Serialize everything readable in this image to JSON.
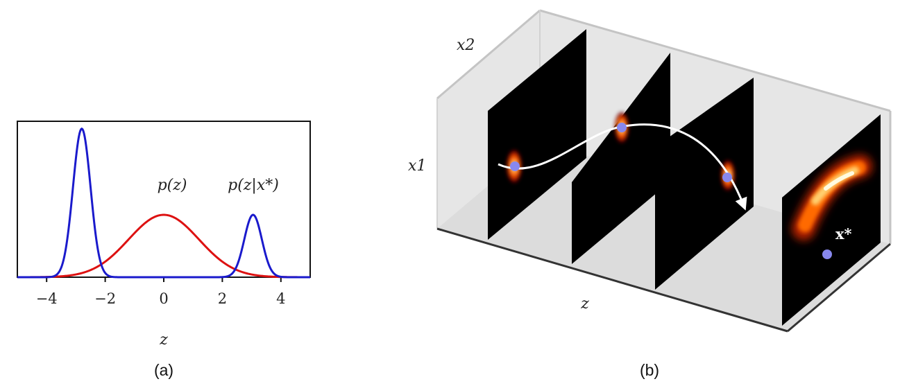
{
  "panel_a": {
    "caption": "(a)",
    "xlabel": "z",
    "xticks": [
      "−4",
      "−2",
      "0",
      "2",
      "4"
    ],
    "xtick_values": [
      -4,
      -2,
      0,
      2,
      4
    ],
    "xlim": [
      -5,
      5
    ],
    "ylim": [
      0,
      1.05
    ],
    "prior_label": "p(z)",
    "posterior_label": "p(z|x*)",
    "prior_color": "#dd1111",
    "posterior_color": "#1a1acc"
  },
  "panel_b": {
    "caption": "(b)",
    "axis_x2": "x2",
    "axis_x1": "x1",
    "axis_z": "z",
    "target_label": "x*",
    "point_color": "#8888ee",
    "path_color": "#ffffff"
  },
  "chart_data": {
    "type": "line",
    "xlabel": "z",
    "xlim": [
      -5,
      5
    ],
    "series": [
      {
        "name": "p(z)",
        "color": "#dd1111",
        "kind": "gaussian",
        "mean": 0,
        "sd": 1.2,
        "peak": 0.42
      },
      {
        "name": "p(z|x*)",
        "color": "#1a1acc",
        "kind": "mixture",
        "components": [
          {
            "mean": -2.8,
            "sd": 0.3,
            "peak": 1.0
          },
          {
            "mean": 3.05,
            "sd": 0.3,
            "peak": 0.42
          }
        ]
      }
    ]
  }
}
